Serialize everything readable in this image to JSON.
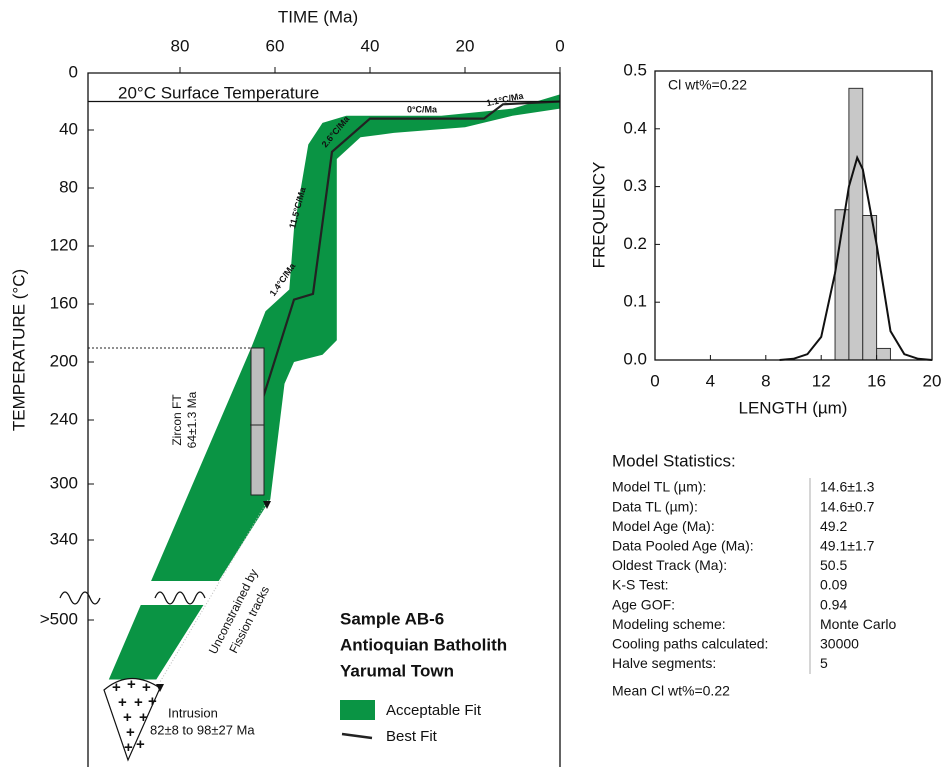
{
  "chart_data": [
    {
      "type": "line",
      "x_label": "TIME (Ma)",
      "y_label": "TEMPERATURE (°C)",
      "xlim": [
        99,
        0
      ],
      "xticks": [
        80,
        60,
        40,
        20,
        0
      ],
      "ylim": [
        0,
        600
      ],
      "yticks": [
        0,
        40,
        80,
        120,
        160,
        200,
        240,
        300,
        340,
        {
          "value": 500,
          "label": ">500"
        }
      ],
      "surface_label": "20°C Surface Temperature",
      "series": [
        {
          "name": "Acceptable Fit",
          "color": "#0a9444",
          "kind": "area",
          "x": [
            95,
            65,
            62,
            57,
            56,
            53,
            50,
            45,
            25,
            10,
            0,
            0,
            10,
            20,
            35,
            42,
            47,
            47,
            50,
            56,
            58,
            61,
            85
          ],
          "values": [
            541,
            190,
            165,
            150,
            108,
            50,
            35,
            30,
            30,
            25,
            15,
            25,
            30,
            38,
            42,
            45,
            60,
            185,
            195,
            200,
            215,
            311,
            541
          ]
        },
        {
          "name": "Best Fit",
          "color": "#222222",
          "kind": "line",
          "x": [
            64,
            56,
            52,
            48,
            40,
            16,
            12,
            0
          ],
          "values": [
            240,
            157,
            153,
            55,
            32,
            32,
            22,
            20
          ]
        }
      ],
      "rate_labels": [
        "1.4°C/Ma",
        "11.5°C/Ma",
        "2.6°C/Ma",
        "0°C/Ma",
        "1.1°C/Ma"
      ],
      "zircon_label": [
        "Zircon FT",
        "64±1.3 Ma"
      ],
      "unconstrained_label": [
        "Unconstrained by",
        "Fission tracks"
      ],
      "intrusion_label": [
        "Intrusion",
        "82±8 to 98±27 Ma"
      ],
      "sample_title": [
        "Sample AB-6",
        "Antioquian Batholith",
        "Yarumal Town"
      ]
    },
    {
      "type": "histogram",
      "x_label": "LENGTH (µm)",
      "y_label": "FREQUENCY",
      "annotation": "Cl wt%=0.22",
      "xlim": [
        0,
        20
      ],
      "xticks": [
        0,
        4,
        8,
        12,
        16,
        20
      ],
      "ylim": [
        0,
        0.5
      ],
      "yticks": [
        {
          "value": 0,
          "label": "0.0"
        },
        0.1,
        0.2,
        0.3,
        0.4,
        0.5
      ],
      "bins": [
        13,
        14,
        15,
        16,
        17
      ],
      "counts": [
        0.26,
        0.47,
        0.25,
        0.02
      ],
      "color": "#c8c8c8",
      "curve": {
        "x": [
          9,
          10,
          11,
          12,
          13,
          14,
          14.6,
          15,
          16,
          17,
          18,
          19,
          20
        ],
        "values": [
          0,
          0.002,
          0.01,
          0.04,
          0.15,
          0.3,
          0.35,
          0.33,
          0.2,
          0.05,
          0.01,
          0.002,
          0
        ]
      }
    }
  ],
  "model_statistics": {
    "title": "Model Statistics:",
    "rows": [
      [
        "Model TL (µm):",
        "14.6±1.3"
      ],
      [
        "Data TL (µm):",
        "14.6±0.7"
      ],
      [
        "Model Age (Ma):",
        "49.2"
      ],
      [
        "Data Pooled Age (Ma):",
        "49.1±1.7"
      ],
      [
        "Oldest Track (Ma):",
        "50.5"
      ],
      [
        "K-S Test:",
        "0.09"
      ],
      [
        "Age GOF:",
        "0.94"
      ],
      [
        "Modeling scheme:",
        "Monte Carlo"
      ],
      [
        "Cooling paths calculated:",
        "30000"
      ],
      [
        "Halve segments:",
        "5"
      ]
    ],
    "footer": "Mean Cl wt%=0.22"
  }
}
